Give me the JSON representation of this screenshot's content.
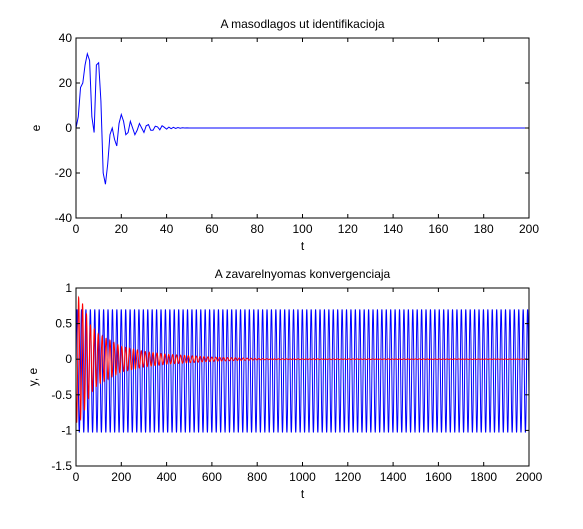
{
  "chart_data": [
    {
      "type": "line",
      "title": "A masodlagos ut identifikacioja",
      "xlabel": "t",
      "ylabel": "e",
      "xlim": [
        0,
        200
      ],
      "ylim": [
        -40,
        40
      ],
      "xticks": [
        0,
        20,
        40,
        60,
        80,
        100,
        120,
        140,
        160,
        180,
        200
      ],
      "yticks": [
        -40,
        -20,
        0,
        20,
        40
      ],
      "series": [
        {
          "color": "#0000ff",
          "x": [
            0,
            1,
            2,
            3,
            4,
            5,
            6,
            7,
            8,
            9,
            10,
            11,
            12,
            13,
            14,
            15,
            16,
            17,
            18,
            19,
            20,
            21,
            22,
            23,
            24,
            25,
            26,
            27,
            28,
            29,
            30,
            31,
            32,
            33,
            34,
            35,
            36,
            37,
            38,
            39,
            40,
            41,
            42,
            43,
            44,
            45,
            46,
            47,
            48,
            49,
            50,
            60,
            80,
            100,
            120,
            140,
            160,
            180,
            200
          ],
          "y": [
            0,
            5,
            18,
            20,
            28,
            33,
            30,
            5,
            -2,
            28,
            29,
            12,
            -20,
            -25,
            -16,
            -3,
            0,
            -5,
            -8,
            2,
            6,
            3,
            -3,
            -2,
            3,
            0,
            -3,
            -1,
            2,
            0,
            -2,
            1,
            1.5,
            -1,
            -1,
            0.8,
            0.5,
            -0.8,
            1,
            0.3,
            -0.5,
            0.4,
            -0.3,
            0.3,
            -0.2,
            0.2,
            -0.1,
            0.1,
            0,
            0.05,
            0,
            0,
            0,
            0,
            0,
            0,
            0,
            0,
            0
          ]
        }
      ]
    },
    {
      "type": "line",
      "title": "A zavarelnyomas konvergenciaja",
      "xlabel": "t",
      "ylabel": "y, e",
      "xlim": [
        0,
        2000
      ],
      "ylim": [
        -1.5,
        1
      ],
      "xticks": [
        0,
        200,
        400,
        600,
        800,
        1000,
        1200,
        1400,
        1600,
        1800,
        2000
      ],
      "yticks": [
        -1.5,
        -1,
        -0.5,
        0,
        0.5,
        1
      ],
      "series": [
        {
          "color": "#0000ff",
          "kind": "periodic",
          "period": 19.5,
          "max": 0.7,
          "min": -1.03,
          "x": [
            0,
            2000
          ]
        },
        {
          "color": "#ff0000",
          "kind": "decaying",
          "env_t": [
            0,
            20,
            40,
            60,
            100,
            200,
            300,
            400,
            500,
            600,
            700,
            800,
            850,
            2000
          ],
          "env_a": [
            0.9,
            0.85,
            0.7,
            0.5,
            0.35,
            0.18,
            0.11,
            0.07,
            0.05,
            0.03,
            0.02,
            0.01,
            0.006,
            0.003
          ],
          "x": [
            0,
            2000
          ]
        }
      ]
    }
  ]
}
